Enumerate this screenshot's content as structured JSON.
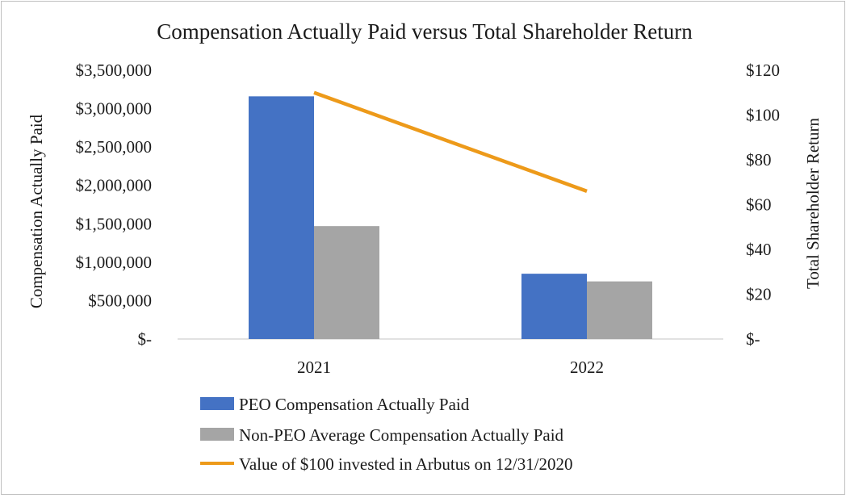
{
  "chart_data": {
    "type": "bar+line",
    "title": "Compensation Actually Paid versus Total Shareholder Return",
    "categories": [
      "2021",
      "2022"
    ],
    "series": [
      {
        "name": "PEO Compensation Actually Paid",
        "kind": "bar",
        "axis": "left",
        "color": "#4472c4",
        "values": [
          3160000,
          850000
        ]
      },
      {
        "name": "Non-PEO Average Compensation Actually Paid",
        "kind": "bar",
        "axis": "left",
        "color": "#a5a5a5",
        "values": [
          1470000,
          750000
        ]
      },
      {
        "name": "Value of $100 invested in Arbutus on 12/31/2020",
        "kind": "line",
        "axis": "right",
        "color": "#ed9a1a",
        "values": [
          110,
          66
        ]
      }
    ],
    "ylabel": "Compensation Actually Paid",
    "y2label": "Total Shareholder Return",
    "ylim": [
      0,
      3500000
    ],
    "y2lim": [
      0,
      120
    ],
    "yticks": [
      "$-",
      "$500,000",
      "$1,000,000",
      "$1,500,000",
      "$2,000,000",
      "$2,500,000",
      "$3,000,000",
      "$3,500,000"
    ],
    "y2ticks": [
      "$-",
      "$20",
      "$40",
      "$60",
      "$80",
      "$100",
      "$120"
    ],
    "grid": false,
    "legend": "bottom"
  }
}
